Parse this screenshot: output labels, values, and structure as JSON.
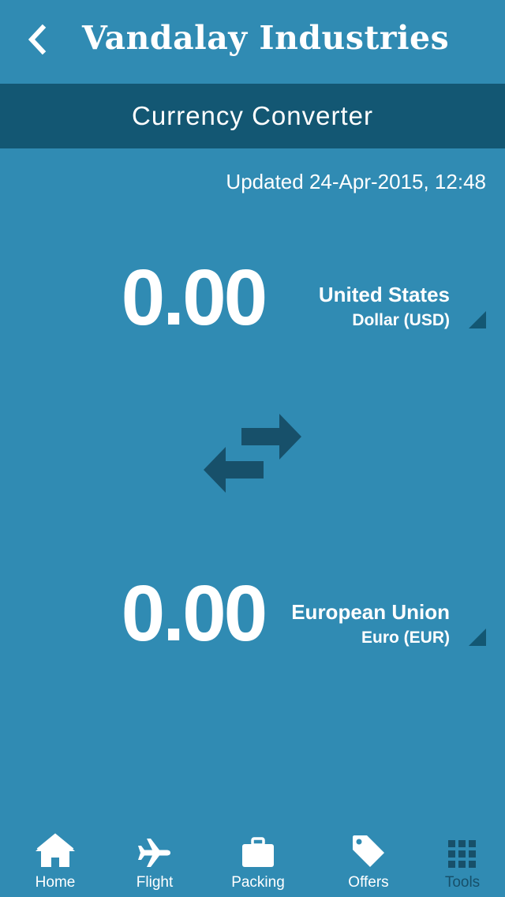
{
  "header": {
    "title": "Vandalay Industries",
    "back_icon": "chevron-left-icon"
  },
  "subheader": {
    "title": "Currency Converter"
  },
  "updated": "Updated 24-Apr-2015, 12:48",
  "from": {
    "amount": "0.00",
    "country": "United States",
    "currency": "Dollar (USD)"
  },
  "to": {
    "amount": "0.00",
    "country": "European Union",
    "currency": "Euro (EUR)"
  },
  "swap_icon": "swap-arrows-icon",
  "tabs": [
    {
      "label": "Home",
      "icon": "home-icon"
    },
    {
      "label": "Flight",
      "icon": "airplane-icon"
    },
    {
      "label": "Packing",
      "icon": "briefcase-icon"
    },
    {
      "label": "Offers",
      "icon": "tag-icon"
    },
    {
      "label": "Tools",
      "icon": "grid-icon"
    }
  ],
  "colors": {
    "background": "#308bb3",
    "bar": "#135773",
    "accent_dark": "#17506a",
    "text": "#ffffff"
  }
}
